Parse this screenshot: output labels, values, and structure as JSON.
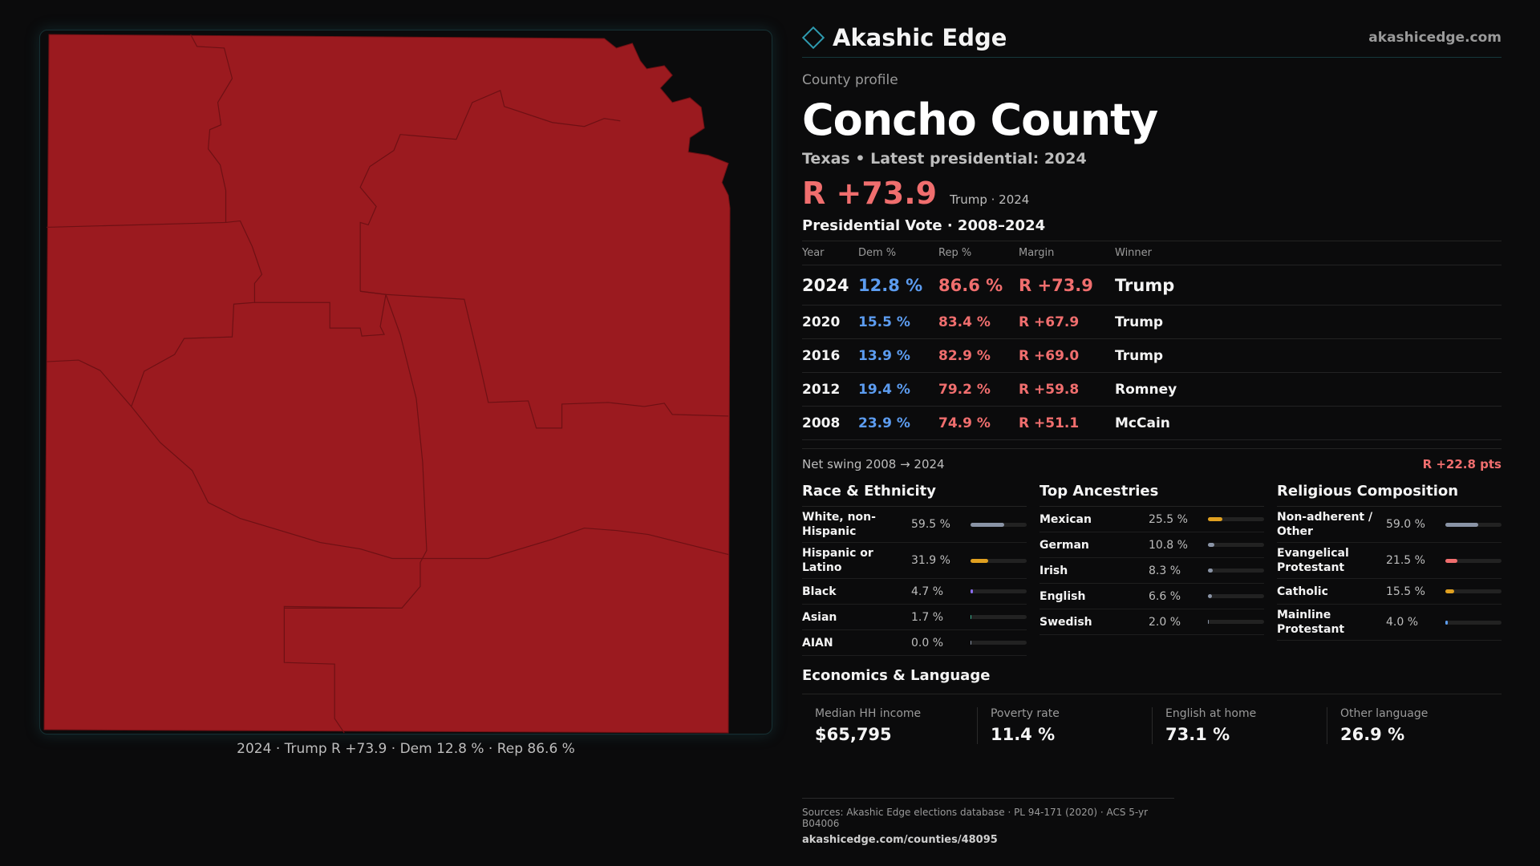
{
  "map": {
    "caption": "2024 · Trump R +73.9 · Dem 12.8 % · Rep 86.6 %",
    "fill_color": "#9b1a1f",
    "border_color": "#6e1014",
    "water_color": "#0b0b0c"
  },
  "brand": {
    "name": "Akashic Edge",
    "url": "akashicedge.com",
    "icon": "diamond-icon"
  },
  "profile": {
    "eyebrow": "County profile",
    "title": "Concho County",
    "subtitle": "Texas • Latest presidential: 2024",
    "headline_margin": "R +73.9",
    "headline_note": "Trump · 2024"
  },
  "presidential_vote": {
    "title": "Presidential Vote · 2008–2024",
    "headers": {
      "year": "Year",
      "dem": "Dem %",
      "rep": "Rep %",
      "margin": "Margin",
      "winner": "Winner"
    },
    "rows": [
      {
        "year": "2024",
        "dem": "12.8 %",
        "rep": "86.6 %",
        "margin": "R +73.9",
        "winner": "Trump"
      },
      {
        "year": "2020",
        "dem": "15.5 %",
        "rep": "83.4 %",
        "margin": "R +67.9",
        "winner": "Trump"
      },
      {
        "year": "2016",
        "dem": "13.9 %",
        "rep": "82.9 %",
        "margin": "R +69.0",
        "winner": "Trump"
      },
      {
        "year": "2012",
        "dem": "19.4 %",
        "rep": "79.2 %",
        "margin": "R +59.8",
        "winner": "Romney"
      },
      {
        "year": "2008",
        "dem": "23.9 %",
        "rep": "74.9 %",
        "margin": "R +51.1",
        "winner": "McCain"
      }
    ],
    "swing_label": "Net swing 2008 → 2024",
    "swing_value": "R +22.8 pts"
  },
  "race": {
    "title": "Race & Ethnicity",
    "rows": [
      {
        "label": "White, non-Hispanic",
        "value": "59.5 %",
        "pct": 59.5,
        "color": "#8a94a6"
      },
      {
        "label": "Hispanic or Latino",
        "value": "31.9 %",
        "pct": 31.9,
        "color": "#e0a020"
      },
      {
        "label": "Black",
        "value": "4.7 %",
        "pct": 4.7,
        "color": "#8a6cf0"
      },
      {
        "label": "Asian",
        "value": "1.7 %",
        "pct": 1.7,
        "color": "#3bb08f"
      },
      {
        "label": "AIAN",
        "value": "0.0 %",
        "pct": 0.0,
        "color": "#8a94a6"
      }
    ]
  },
  "ancestry": {
    "title": "Top Ancestries",
    "rows": [
      {
        "label": "Mexican",
        "value": "25.5 %",
        "pct": 25.5,
        "color": "#e0a020"
      },
      {
        "label": "German",
        "value": "10.8 %",
        "pct": 10.8,
        "color": "#8a94a6"
      },
      {
        "label": "Irish",
        "value": "8.3 %",
        "pct": 8.3,
        "color": "#8a94a6"
      },
      {
        "label": "English",
        "value": "6.6 %",
        "pct": 6.6,
        "color": "#8a94a6"
      },
      {
        "label": "Swedish",
        "value": "2.0 %",
        "pct": 2.0,
        "color": "#8a94a6"
      }
    ]
  },
  "religion": {
    "title": "Religious Composition",
    "rows": [
      {
        "label": "Non-adherent / Other",
        "value": "59.0 %",
        "pct": 59.0,
        "color": "#8a94a6"
      },
      {
        "label": "Evangelical Protestant",
        "value": "21.5 %",
        "pct": 21.5,
        "color": "#f06e6e"
      },
      {
        "label": "Catholic",
        "value": "15.5 %",
        "pct": 15.5,
        "color": "#e0a020"
      },
      {
        "label": "Mainline Protestant",
        "value": "4.0 %",
        "pct": 4.0,
        "color": "#5c9cf0"
      }
    ]
  },
  "economics": {
    "title": "Economics & Language",
    "items": [
      {
        "label": "Median HH income",
        "value": "$65,795"
      },
      {
        "label": "Poverty rate",
        "value": "11.4 %"
      },
      {
        "label": "English at home",
        "value": "73.1 %"
      },
      {
        "label": "Other language",
        "value": "26.9 %"
      }
    ]
  },
  "sources": {
    "text": "Sources: Akashic Edge elections database · PL 94-171 (2020) · ACS 5-yr B04006",
    "url": "akashicedge.com/counties/48095"
  }
}
